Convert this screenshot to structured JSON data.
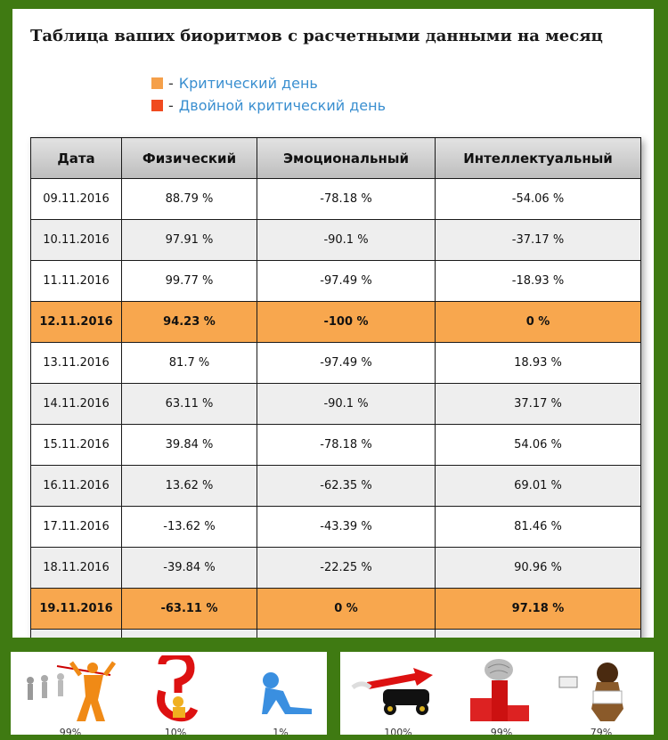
{
  "title": "Таблица ваших биоритмов с расчетными данными на месяц",
  "legend": {
    "items": [
      {
        "label": "Критический день",
        "color": "#f5a04a"
      },
      {
        "label": "Двойной критический день",
        "color": "#f04a1f"
      }
    ],
    "dash": "-"
  },
  "table": {
    "headers": [
      "Дата",
      "Физический",
      "Эмоциональный",
      "Интеллектуальный"
    ],
    "rows": [
      {
        "date": "09.11.2016",
        "phys": "88.79 %",
        "emo": "-78.18 %",
        "intel": "-54.06 %",
        "critical": false
      },
      {
        "date": "10.11.2016",
        "phys": "97.91 %",
        "emo": "-90.1 %",
        "intel": "-37.17 %",
        "critical": false
      },
      {
        "date": "11.11.2016",
        "phys": "99.77 %",
        "emo": "-97.49 %",
        "intel": "-18.93 %",
        "critical": false
      },
      {
        "date": "12.11.2016",
        "phys": "94.23 %",
        "emo": "-100 %",
        "intel": "0 %",
        "critical": true
      },
      {
        "date": "13.11.2016",
        "phys": "81.7 %",
        "emo": "-97.49 %",
        "intel": "18.93 %",
        "critical": false
      },
      {
        "date": "14.11.2016",
        "phys": "63.11 %",
        "emo": "-90.1 %",
        "intel": "37.17 %",
        "critical": false
      },
      {
        "date": "15.11.2016",
        "phys": "39.84 %",
        "emo": "-78.18 %",
        "intel": "54.06 %",
        "critical": false
      },
      {
        "date": "16.11.2016",
        "phys": "13.62 %",
        "emo": "-62.35 %",
        "intel": "69.01 %",
        "critical": false
      },
      {
        "date": "17.11.2016",
        "phys": "-13.62 %",
        "emo": "-43.39 %",
        "intel": "81.46 %",
        "critical": false
      },
      {
        "date": "18.11.2016",
        "phys": "-39.84 %",
        "emo": "-22.25 %",
        "intel": "90.96 %",
        "critical": false
      },
      {
        "date": "19.11.2016",
        "phys": "-63.11 %",
        "emo": "0 %",
        "intel": "97.18 %",
        "critical": true
      },
      {
        "date": "",
        "phys": "",
        "emo": "",
        "intel": "",
        "critical": false
      }
    ]
  },
  "bottom_left": {
    "items": [
      {
        "icon": "runners-finish-icon",
        "percent": "99%"
      },
      {
        "icon": "question-mark-figure-icon",
        "percent": "10%"
      },
      {
        "icon": "sad-figure-icon",
        "percent": "1%"
      }
    ]
  },
  "bottom_right": {
    "items": [
      {
        "icon": "rocket-car-icon",
        "percent": "100%"
      },
      {
        "icon": "brain-podium-icon",
        "percent": "99%"
      },
      {
        "icon": "dog-computer-icon",
        "percent": "79%"
      }
    ]
  }
}
